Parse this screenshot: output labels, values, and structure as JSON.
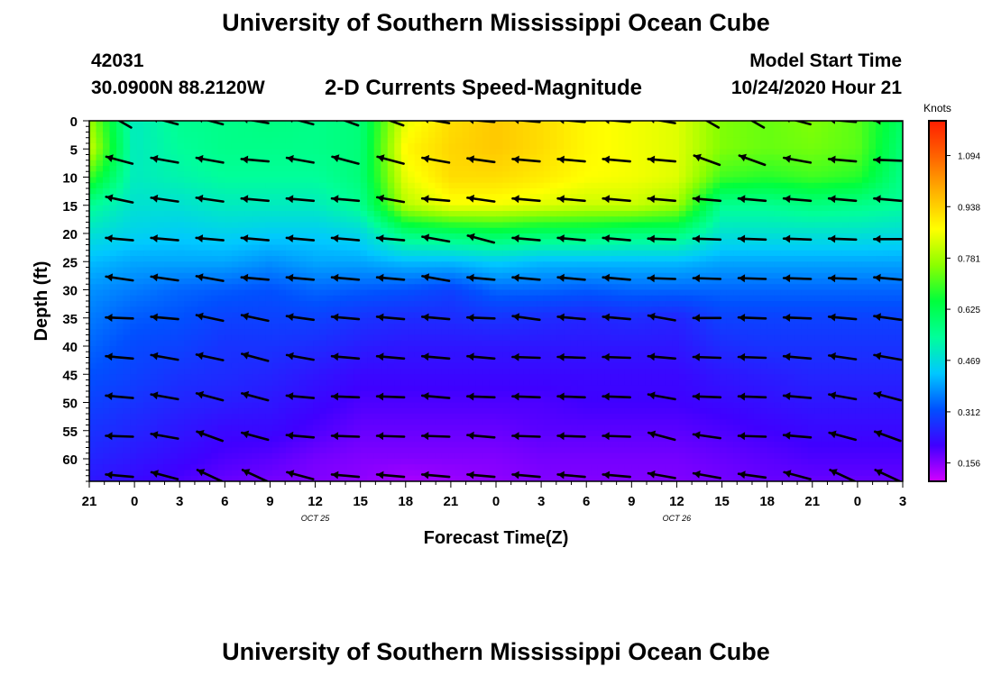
{
  "header": {
    "title": "University of Southern Mississippi Ocean Cube",
    "station_id": "42031",
    "station_position": "30.0900N 88.2120W",
    "plot_title": "2-D Currents Speed-Magnitude",
    "model_start_label": "Model Start Time",
    "model_start_value": "10/24/2020 Hour 21"
  },
  "footer": {
    "title": "University of Southern Mississippi Ocean Cube"
  },
  "chart_data": {
    "type": "heatmap",
    "title": "2-D Currents Speed-Magnitude",
    "xlabel": "Forecast Time(Z)",
    "ylabel": "Depth (ft)",
    "x_tick_labels": [
      "21",
      "0",
      "3",
      "6",
      "9",
      "12",
      "15",
      "18",
      "21",
      "0",
      "3",
      "6",
      "9",
      "12",
      "15",
      "18",
      "21",
      "0",
      "3"
    ],
    "x_date_labels": [
      {
        "label": "OCT 25",
        "near_tick": "12"
      },
      {
        "label": "OCT 26",
        "near_tick": "12"
      }
    ],
    "y_ticks": [
      0,
      5,
      10,
      15,
      20,
      25,
      30,
      35,
      40,
      45,
      50,
      55,
      60
    ],
    "ylim": [
      0,
      64
    ],
    "y_inverted": true,
    "colorbar": {
      "unit": "Knots",
      "ticks": [
        0.156,
        0.312,
        0.469,
        0.625,
        0.781,
        0.938,
        1.094
      ],
      "range": [
        0.1,
        1.2
      ],
      "colors": [
        "#d200ff",
        "#3f00ff",
        "#0050ff",
        "#00c8ff",
        "#00ff9a",
        "#00ff3c",
        "#8cff00",
        "#ffff00",
        "#ffb400",
        "#ff6400",
        "#ff1e00"
      ]
    },
    "depth_levels_ft": [
      0,
      7,
      14,
      21,
      28,
      35,
      42,
      49,
      56,
      63
    ],
    "speed_profile": {
      "time_hours": [
        0,
        3,
        6,
        9,
        12,
        15,
        18,
        21,
        24,
        27,
        30,
        33,
        36,
        39,
        42,
        45,
        48,
        51,
        54
      ],
      "depths_ft": [
        0,
        5,
        10,
        15,
        20,
        25,
        30,
        35,
        40,
        45,
        50,
        55,
        60,
        64
      ],
      "values_knots": [
        [
          0.78,
          0.5,
          0.55,
          0.56,
          0.57,
          0.56,
          0.58,
          0.85,
          0.92,
          0.95,
          0.92,
          0.88,
          0.86,
          0.84,
          0.75,
          0.73,
          0.75,
          0.72,
          0.6
        ],
        [
          0.82,
          0.5,
          0.54,
          0.56,
          0.56,
          0.56,
          0.58,
          0.88,
          0.93,
          0.95,
          0.92,
          0.88,
          0.86,
          0.84,
          0.75,
          0.73,
          0.74,
          0.72,
          0.58
        ],
        [
          0.7,
          0.5,
          0.52,
          0.54,
          0.54,
          0.54,
          0.58,
          0.85,
          0.92,
          0.92,
          0.9,
          0.87,
          0.86,
          0.84,
          0.7,
          0.68,
          0.7,
          0.68,
          0.56
        ],
        [
          0.55,
          0.48,
          0.48,
          0.5,
          0.5,
          0.5,
          0.55,
          0.8,
          0.86,
          0.86,
          0.84,
          0.82,
          0.82,
          0.78,
          0.55,
          0.55,
          0.57,
          0.56,
          0.54
        ],
        [
          0.48,
          0.45,
          0.44,
          0.45,
          0.44,
          0.44,
          0.46,
          0.58,
          0.6,
          0.62,
          0.6,
          0.6,
          0.58,
          0.58,
          0.48,
          0.48,
          0.48,
          0.48,
          0.47
        ],
        [
          0.42,
          0.4,
          0.4,
          0.4,
          0.38,
          0.4,
          0.4,
          0.42,
          0.42,
          0.44,
          0.42,
          0.42,
          0.42,
          0.42,
          0.4,
          0.4,
          0.4,
          0.4,
          0.4
        ],
        [
          0.38,
          0.36,
          0.34,
          0.33,
          0.32,
          0.34,
          0.33,
          0.32,
          0.3,
          0.34,
          0.34,
          0.33,
          0.34,
          0.34,
          0.34,
          0.34,
          0.34,
          0.34,
          0.34
        ],
        [
          0.36,
          0.33,
          0.32,
          0.3,
          0.3,
          0.3,
          0.28,
          0.27,
          0.27,
          0.28,
          0.27,
          0.26,
          0.27,
          0.26,
          0.3,
          0.3,
          0.3,
          0.3,
          0.3
        ],
        [
          0.34,
          0.31,
          0.3,
          0.28,
          0.28,
          0.27,
          0.25,
          0.24,
          0.24,
          0.24,
          0.24,
          0.24,
          0.24,
          0.24,
          0.27,
          0.28,
          0.28,
          0.28,
          0.28
        ],
        [
          0.32,
          0.3,
          0.28,
          0.27,
          0.26,
          0.24,
          0.22,
          0.22,
          0.22,
          0.22,
          0.22,
          0.22,
          0.22,
          0.22,
          0.24,
          0.25,
          0.26,
          0.26,
          0.26
        ],
        [
          0.3,
          0.28,
          0.26,
          0.25,
          0.24,
          0.22,
          0.2,
          0.2,
          0.2,
          0.2,
          0.2,
          0.21,
          0.21,
          0.21,
          0.22,
          0.23,
          0.24,
          0.24,
          0.24
        ],
        [
          0.28,
          0.26,
          0.24,
          0.22,
          0.22,
          0.2,
          0.18,
          0.18,
          0.18,
          0.18,
          0.19,
          0.19,
          0.19,
          0.19,
          0.2,
          0.21,
          0.22,
          0.22,
          0.22
        ],
        [
          0.26,
          0.24,
          0.22,
          0.2,
          0.19,
          0.17,
          0.16,
          0.16,
          0.16,
          0.16,
          0.17,
          0.17,
          0.17,
          0.17,
          0.18,
          0.19,
          0.2,
          0.2,
          0.2
        ],
        [
          0.24,
          0.22,
          0.2,
          0.18,
          0.17,
          0.16,
          0.15,
          0.13,
          0.14,
          0.15,
          0.16,
          0.16,
          0.16,
          0.16,
          0.17,
          0.18,
          0.18,
          0.18,
          0.18
        ]
      ]
    },
    "arrow_times_hours": [
      2,
      5,
      8,
      11,
      14,
      17,
      20,
      23,
      26,
      29,
      32,
      35,
      38,
      41,
      44,
      47,
      50,
      53
    ],
    "arrow_directions_deg": [
      [
        300,
        285,
        285,
        280,
        285,
        290,
        290,
        280,
        275,
        275,
        275,
        275,
        280,
        300,
        300,
        285,
        275,
        270
      ],
      [
        285,
        280,
        280,
        275,
        280,
        285,
        285,
        280,
        278,
        275,
        275,
        275,
        275,
        290,
        290,
        280,
        275,
        272
      ],
      [
        282,
        278,
        278,
        275,
        275,
        275,
        280,
        275,
        278,
        275,
        275,
        275,
        275,
        275,
        275,
        275,
        275,
        275
      ],
      [
        275,
        275,
        275,
        275,
        275,
        275,
        275,
        280,
        285,
        275,
        275,
        275,
        272,
        272,
        272,
        272,
        272,
        270
      ],
      [
        278,
        278,
        280,
        275,
        275,
        275,
        275,
        280,
        275,
        275,
        275,
        275,
        272,
        272,
        272,
        272,
        272,
        275
      ],
      [
        272,
        275,
        282,
        282,
        278,
        275,
        275,
        275,
        272,
        278,
        275,
        275,
        280,
        270,
        272,
        272,
        275,
        278
      ],
      [
        275,
        280,
        282,
        285,
        280,
        275,
        275,
        275,
        275,
        272,
        272,
        272,
        275,
        272,
        272,
        275,
        278,
        280
      ],
      [
        275,
        280,
        285,
        285,
        275,
        272,
        272,
        275,
        272,
        272,
        272,
        272,
        280,
        272,
        272,
        275,
        280,
        285
      ],
      [
        272,
        280,
        290,
        285,
        275,
        272,
        272,
        272,
        275,
        272,
        272,
        272,
        285,
        278,
        272,
        275,
        285,
        290
      ],
      [
        275,
        285,
        295,
        295,
        285,
        275,
        275,
        275,
        275,
        275,
        275,
        275,
        280,
        280,
        278,
        285,
        295,
        295
      ]
    ]
  }
}
